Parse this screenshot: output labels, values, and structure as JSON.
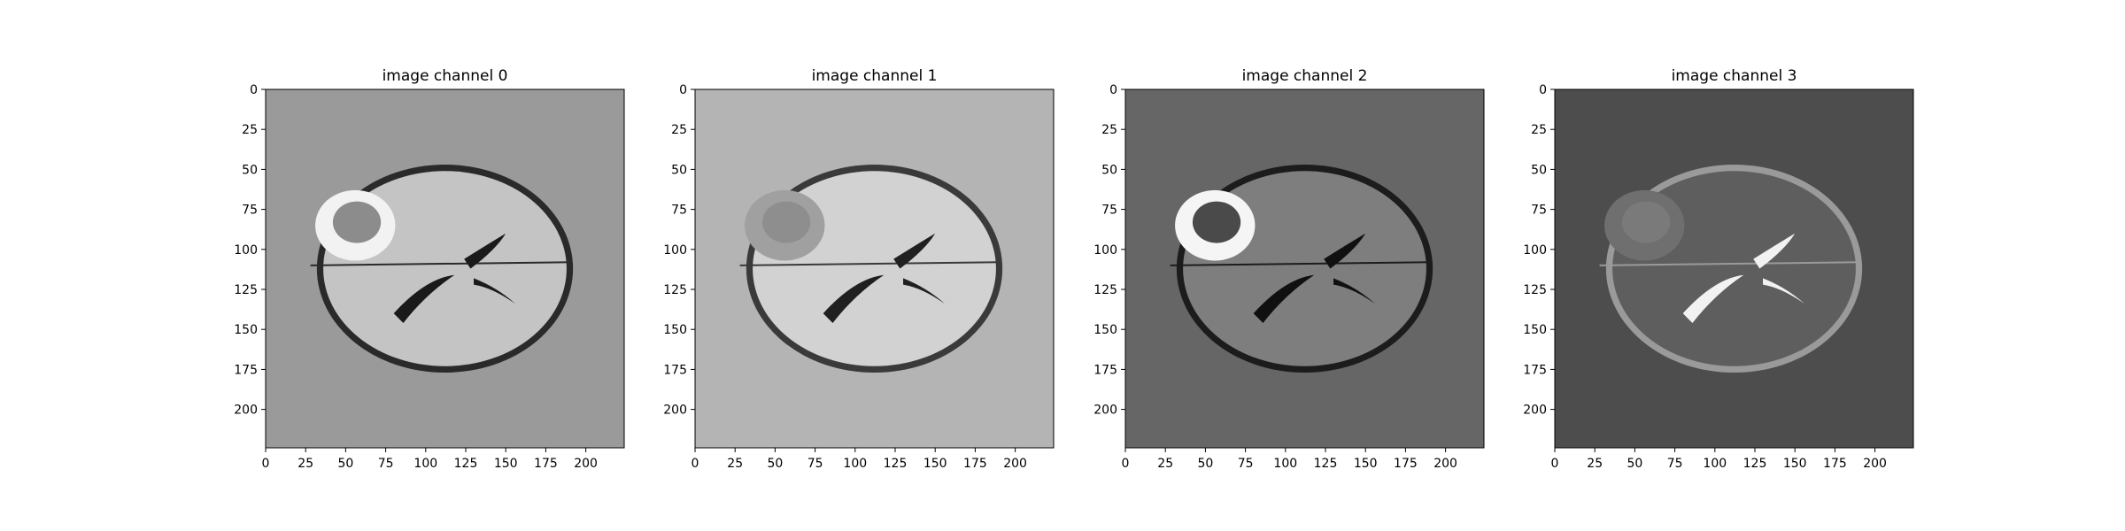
{
  "figure": {
    "background": "#ffffff"
  },
  "chart_data": [
    {
      "type": "heatmap",
      "title": "image channel 0",
      "xlabel": "",
      "ylabel": "",
      "xlim": [
        0,
        224
      ],
      "ylim": [
        224,
        0
      ],
      "x_ticks": [
        0,
        25,
        50,
        75,
        100,
        125,
        150,
        175,
        200
      ],
      "y_ticks": [
        0,
        25,
        50,
        75,
        100,
        125,
        150,
        175,
        200
      ],
      "background_color": "#9a9a9a",
      "tissue_color": "#c4c4c4",
      "lesion_color": "#f2f2f2",
      "lesion_core_color": "#8c8c8c",
      "ventricle_color": "#1a1a1a",
      "rim_color": "#2a2a2a"
    },
    {
      "type": "heatmap",
      "title": "image channel 1",
      "xlabel": "",
      "ylabel": "",
      "xlim": [
        0,
        224
      ],
      "ylim": [
        224,
        0
      ],
      "x_ticks": [
        0,
        25,
        50,
        75,
        100,
        125,
        150,
        175,
        200
      ],
      "y_ticks": [
        0,
        25,
        50,
        75,
        100,
        125,
        150,
        175,
        200
      ],
      "background_color": "#b4b4b4",
      "tissue_color": "#d2d2d2",
      "lesion_color": "#a0a0a0",
      "lesion_core_color": "#8e8e8e",
      "ventricle_color": "#202020",
      "rim_color": "#3a3a3a"
    },
    {
      "type": "heatmap",
      "title": "image channel 2",
      "xlabel": "",
      "ylabel": "",
      "xlim": [
        0,
        224
      ],
      "ylim": [
        224,
        0
      ],
      "x_ticks": [
        0,
        25,
        50,
        75,
        100,
        125,
        150,
        175,
        200
      ],
      "y_ticks": [
        0,
        25,
        50,
        75,
        100,
        125,
        150,
        175,
        200
      ],
      "background_color": "#666666",
      "tissue_color": "#7e7e7e",
      "lesion_color": "#f5f5f5",
      "lesion_core_color": "#4a4a4a",
      "ventricle_color": "#101010",
      "rim_color": "#1c1c1c"
    },
    {
      "type": "heatmap",
      "title": "image channel 3",
      "xlabel": "",
      "ylabel": "",
      "xlim": [
        0,
        224
      ],
      "ylim": [
        224,
        0
      ],
      "x_ticks": [
        0,
        25,
        50,
        75,
        100,
        125,
        150,
        175,
        200
      ],
      "y_ticks": [
        0,
        25,
        50,
        75,
        100,
        125,
        150,
        175,
        200
      ],
      "background_color": "#4d4d4d",
      "tissue_color": "#5e5e5e",
      "lesion_color": "#6f6f6f",
      "lesion_core_color": "#7a7a7a",
      "ventricle_color": "#f2f2f2",
      "rim_color": "#9a9a9a"
    }
  ]
}
